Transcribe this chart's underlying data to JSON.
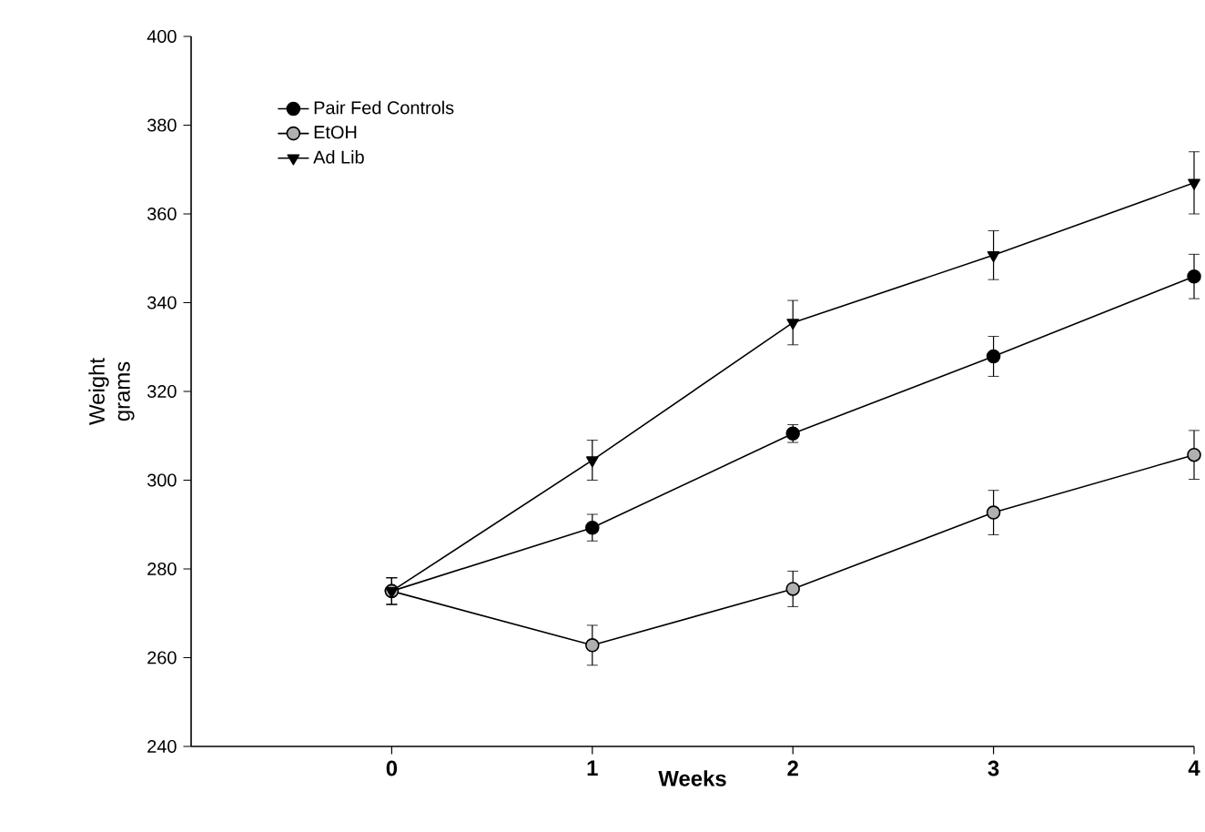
{
  "chart_data": {
    "type": "line",
    "xlabel": "Weeks",
    "ylabel": "Weight grams",
    "x": [
      0,
      1,
      2,
      3,
      4
    ],
    "xlim": [
      -1,
      4
    ],
    "xticks": [
      0,
      1,
      2,
      3,
      4
    ],
    "ylim": [
      240,
      400
    ],
    "yticks": [
      240,
      260,
      280,
      300,
      320,
      340,
      360,
      380,
      400
    ],
    "legend": "top left",
    "grid": false,
    "line_style": "solid",
    "series": [
      {
        "name": "Pair Fed Controls",
        "color": "#000000",
        "marker": "circle",
        "values": [
          275,
          289.3,
          310.5,
          327.9,
          345.9
        ],
        "errors": [
          3,
          3,
          2,
          4.5,
          5
        ]
      },
      {
        "name": "EtOH",
        "color": "#b0b0b0",
        "marker": "circle",
        "values": [
          275,
          262.8,
          275.5,
          292.7,
          305.7
        ],
        "errors": [
          3,
          4.5,
          4,
          5,
          5.5
        ]
      },
      {
        "name": "Ad Lib",
        "color": "#000000",
        "marker": "triangle",
        "values": [
          275,
          304.5,
          335.5,
          350.7,
          367
        ],
        "errors": [
          3,
          4.5,
          5,
          5.5,
          7
        ]
      }
    ]
  }
}
